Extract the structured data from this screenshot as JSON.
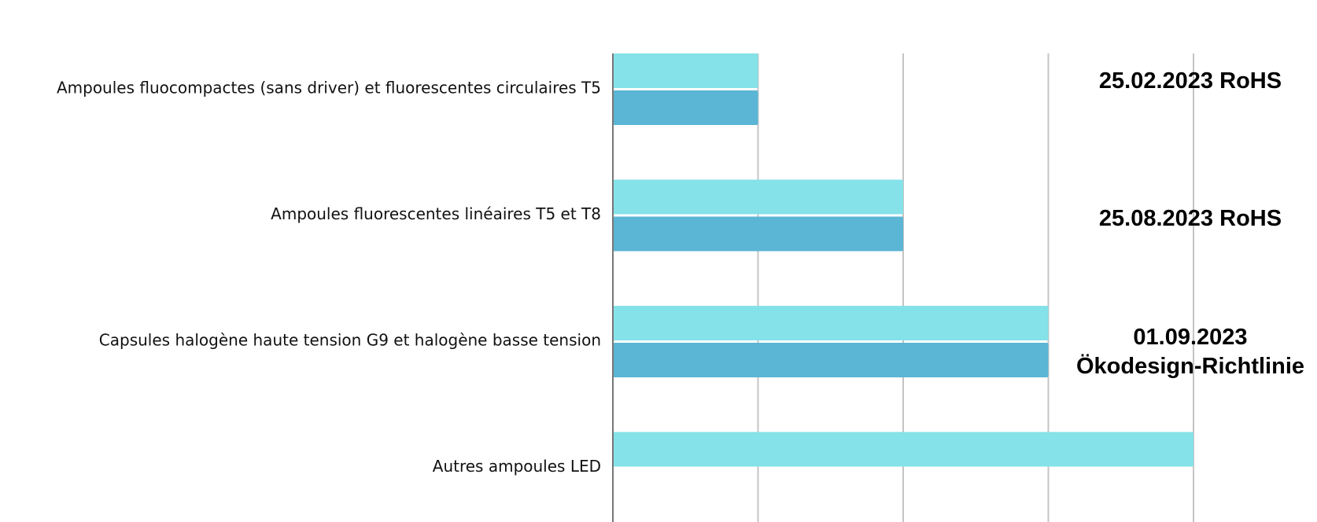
{
  "chart_data": {
    "type": "bar",
    "orientation": "horizontal",
    "categories": [
      "Ampoules fluocompactes (sans driver) et fluorescentes circulaires T5",
      "Ampoules fluorescentes linéaires T5 et T8",
      "Capsules halogène haute tension G9 et halogène basse tension",
      "Autres ampoules LED"
    ],
    "series": [
      {
        "values": [
          1,
          2,
          3,
          4
        ],
        "color": "#84E2E8"
      },
      {
        "values": [
          1,
          2,
          3,
          null
        ],
        "color": "#5BB5D4"
      }
    ],
    "xlim": [
      0,
      4
    ],
    "grid": true,
    "x_ticks_shown": false,
    "legend": "none",
    "annotations": [
      {
        "category_index": 0,
        "lines": [
          "25.02.2023 RoHS"
        ]
      },
      {
        "category_index": 1,
        "lines": [
          "25.08.2023 RoHS"
        ]
      },
      {
        "category_index": 2,
        "lines": [
          "01.09.2023",
          "Ökodesign-Richtlinie"
        ]
      }
    ]
  }
}
